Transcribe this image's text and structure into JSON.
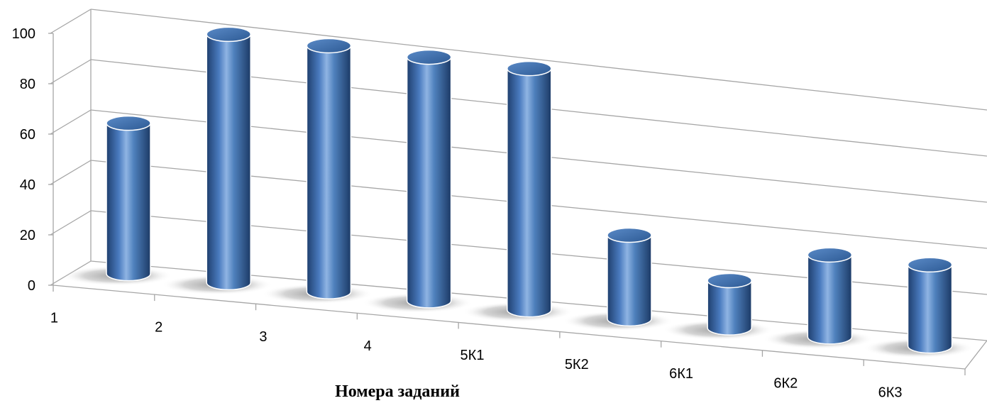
{
  "chart_data": {
    "type": "bar",
    "style": "3d-cylinder",
    "categories": [
      "1",
      "2",
      "3",
      "4",
      "5К1",
      "5К2",
      "6К1",
      "6К2",
      "6К3"
    ],
    "values": [
      60,
      100,
      100,
      100,
      100,
      35,
      20,
      35,
      35
    ],
    "title": "",
    "xlabel": "Номера заданий",
    "ylabel": "",
    "ylim": [
      0,
      100
    ],
    "yticks": [
      0,
      20,
      40,
      60,
      80,
      100
    ],
    "grid": true,
    "legend": "none",
    "colors": {
      "bar": "#4f81bd",
      "bar_dark": "#1f3f6e",
      "bar_light": "#8fb4e3",
      "grid": "#a6a6a6"
    }
  }
}
